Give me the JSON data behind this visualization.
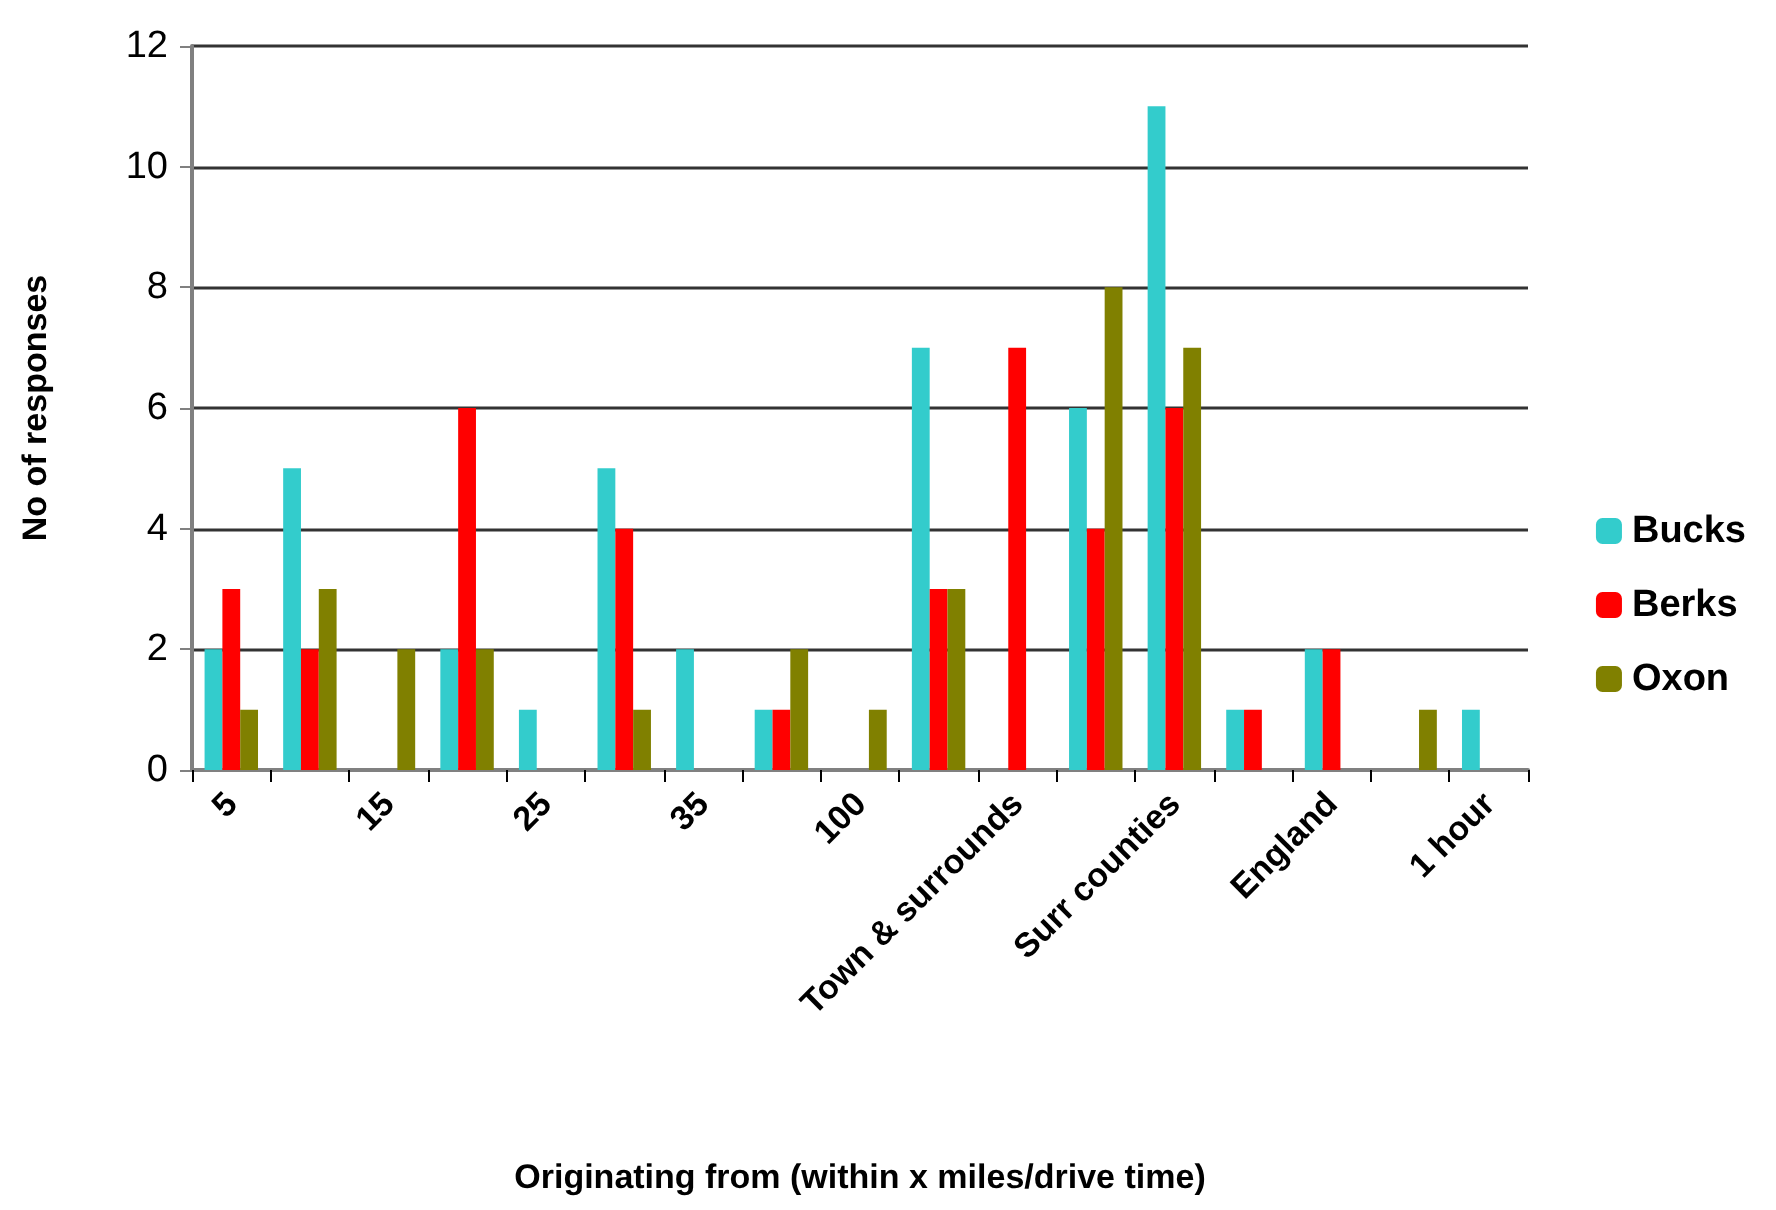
{
  "chart_data": {
    "type": "bar",
    "xlabel": "Originating from (within x miles/drive time)",
    "ylabel": "No of responses",
    "categories": [
      "5",
      null,
      "15",
      null,
      "25",
      null,
      "35",
      null,
      "100",
      null,
      "Town & surrounds",
      null,
      "Surr counties",
      null,
      "England",
      null,
      "1 hour"
    ],
    "series": [
      {
        "name": "Bucks",
        "color": "#33cccc",
        "values": [
          2,
          5,
          0,
          2,
          1,
          5,
          2,
          1,
          0,
          7,
          0,
          6,
          11,
          1,
          2,
          0,
          1
        ]
      },
      {
        "name": "Berks",
        "color": "#ff0000",
        "values": [
          3,
          2,
          0,
          6,
          0,
          4,
          0,
          1,
          0,
          3,
          7,
          4,
          6,
          1,
          2,
          0,
          0
        ]
      },
      {
        "name": "Oxon",
        "color": "#808000",
        "values": [
          1,
          3,
          2,
          2,
          0,
          1,
          0,
          2,
          1,
          3,
          0,
          8,
          7,
          0,
          0,
          1,
          0
        ]
      }
    ],
    "ylim": [
      0,
      12
    ],
    "yticks": [
      0,
      2,
      4,
      6,
      8,
      10,
      12
    ],
    "grid": "y",
    "legend": "right"
  }
}
